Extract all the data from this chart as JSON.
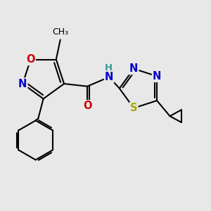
{
  "bg": "#e8e8e8",
  "bond_color": "#000000",
  "bond_lw": 1.5,
  "dbl_off": 0.055,
  "atom_colors": {
    "N": "#0000cc",
    "O": "#cc0000",
    "S": "#aaaa00",
    "H": "#339999"
  },
  "fs_main": 10.5,
  "fs_methyl": 9,
  "fs_NH": 9.5
}
